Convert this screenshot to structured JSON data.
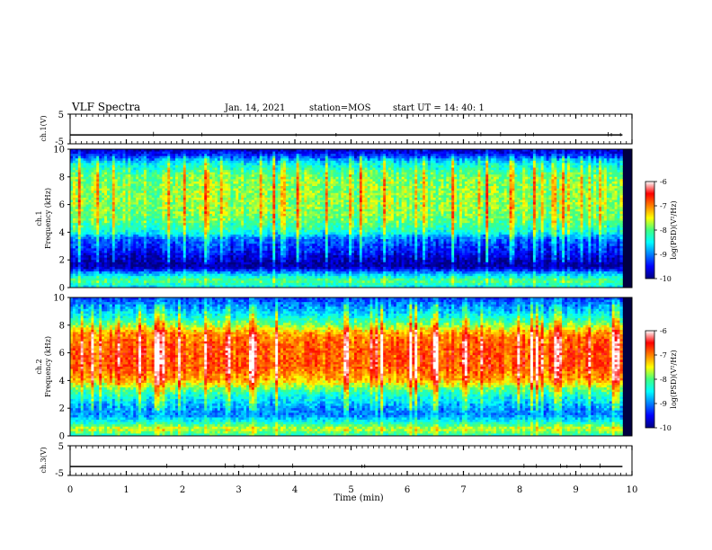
{
  "header": {
    "title": "VLF Spectra",
    "date": "Jan. 14, 2021",
    "station": "station=MOS",
    "start": "start  UT =  14: 40: 1"
  },
  "chart_data": [
    {
      "type": "line",
      "panel": "ch1-waveform",
      "ylabel": "ch.1(V)",
      "ylim": [
        -5,
        5
      ],
      "yticks": [
        "5",
        "-5"
      ],
      "series": [
        {
          "x": [
            0,
            9.83
          ],
          "y": [
            -2,
            -2
          ]
        }
      ]
    },
    {
      "type": "heatmap",
      "panel": "ch1-spectrogram",
      "ylabel": "ch.1\nFrequency (kHz)",
      "ylabel_lines": [
        "ch.1",
        "Frequency (kHz)"
      ],
      "ylim": [
        0,
        10
      ],
      "yticks": [
        "0",
        "2",
        "4",
        "6",
        "8",
        "10"
      ],
      "colorbar": {
        "label": "log(PSD)(V²/Hz)",
        "ticks": [
          "-6",
          "-7",
          "-8",
          "-9",
          "-10"
        ],
        "range": [
          -10,
          -6
        ]
      },
      "profile_khz": [
        0,
        0.5,
        1.0,
        1.5,
        2.0,
        2.5,
        3.0,
        3.5,
        4.0,
        5.0,
        6.0,
        7.0,
        8.0,
        8.5,
        9.0,
        9.5,
        10.0
      ],
      "profile_log_psd": [
        -8.6,
        -8.0,
        -8.8,
        -9.9,
        -9.8,
        -9.5,
        -9.3,
        -9.1,
        -8.4,
        -7.9,
        -7.8,
        -7.8,
        -7.9,
        -8.2,
        -8.5,
        -9.3,
        -9.8
      ]
    },
    {
      "type": "heatmap",
      "panel": "ch2-spectrogram",
      "ylabel": "ch.2\nFrequency (kHz)",
      "ylabel_lines": [
        "ch.2",
        "Frequency (kHz)"
      ],
      "ylim": [
        0,
        10
      ],
      "yticks": [
        "0",
        "2",
        "4",
        "6",
        "8",
        "10"
      ],
      "colorbar": {
        "label": "log(PSD)(V²/Hz)",
        "ticks": [
          "-6",
          "-7",
          "-8",
          "-9",
          "-10"
        ],
        "range": [
          -10,
          -6
        ]
      },
      "profile_khz": [
        0,
        0.5,
        1.0,
        1.5,
        2.0,
        2.5,
        3.0,
        3.5,
        4.0,
        5.0,
        6.0,
        7.0,
        7.5,
        8.0,
        8.5,
        9.0,
        9.5,
        10.0
      ],
      "profile_log_psd": [
        -8.3,
        -7.6,
        -8.4,
        -9.0,
        -8.9,
        -8.6,
        -8.3,
        -7.8,
        -7.2,
        -6.8,
        -6.8,
        -6.9,
        -7.2,
        -7.8,
        -8.3,
        -8.7,
        -9.0,
        -9.3
      ]
    },
    {
      "type": "line",
      "panel": "ch3-waveform",
      "ylabel": "ch.3(V)",
      "ylim": [
        -5,
        5
      ],
      "yticks": [
        "5",
        "-5"
      ],
      "xlabel": "Time  (min)",
      "xlim": [
        0,
        10
      ],
      "xticks": [
        "0",
        "1",
        "2",
        "3",
        "4",
        "5",
        "6",
        "7",
        "8",
        "9",
        "10"
      ],
      "series": [
        {
          "x": [
            0,
            9.83
          ],
          "y": [
            -2,
            -2
          ]
        }
      ]
    }
  ]
}
